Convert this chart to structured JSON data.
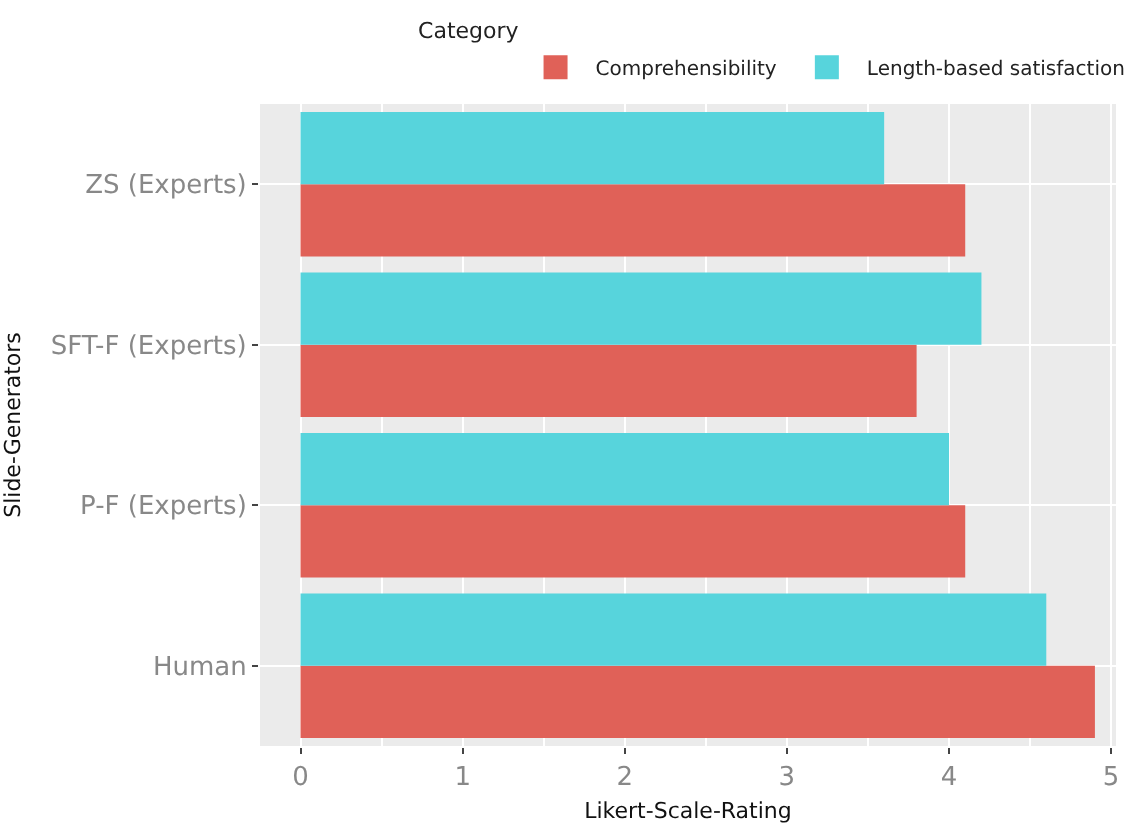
{
  "chart_data": {
    "type": "bar",
    "orientation": "horizontal",
    "xlabel": "Likert-Scale-Rating",
    "ylabel": "Slide-Generators",
    "legend_title": "Category",
    "categories": [
      "ZS (Experts)",
      "SFT-F (Experts)",
      "P-F (Experts)",
      "Human"
    ],
    "series": [
      {
        "name": "Comprehensibility",
        "color": "#e06158",
        "values": [
          4.1,
          3.8,
          4.1,
          4.9
        ]
      },
      {
        "name": "Length-based satisfaction",
        "color": "#57d4dc",
        "values": [
          3.6,
          4.2,
          4.0,
          4.6
        ]
      }
    ],
    "xlim": [
      -0.25,
      5.03
    ],
    "xticks": [
      0,
      1,
      2,
      3,
      4,
      5
    ],
    "grid": true,
    "legend": "top"
  }
}
